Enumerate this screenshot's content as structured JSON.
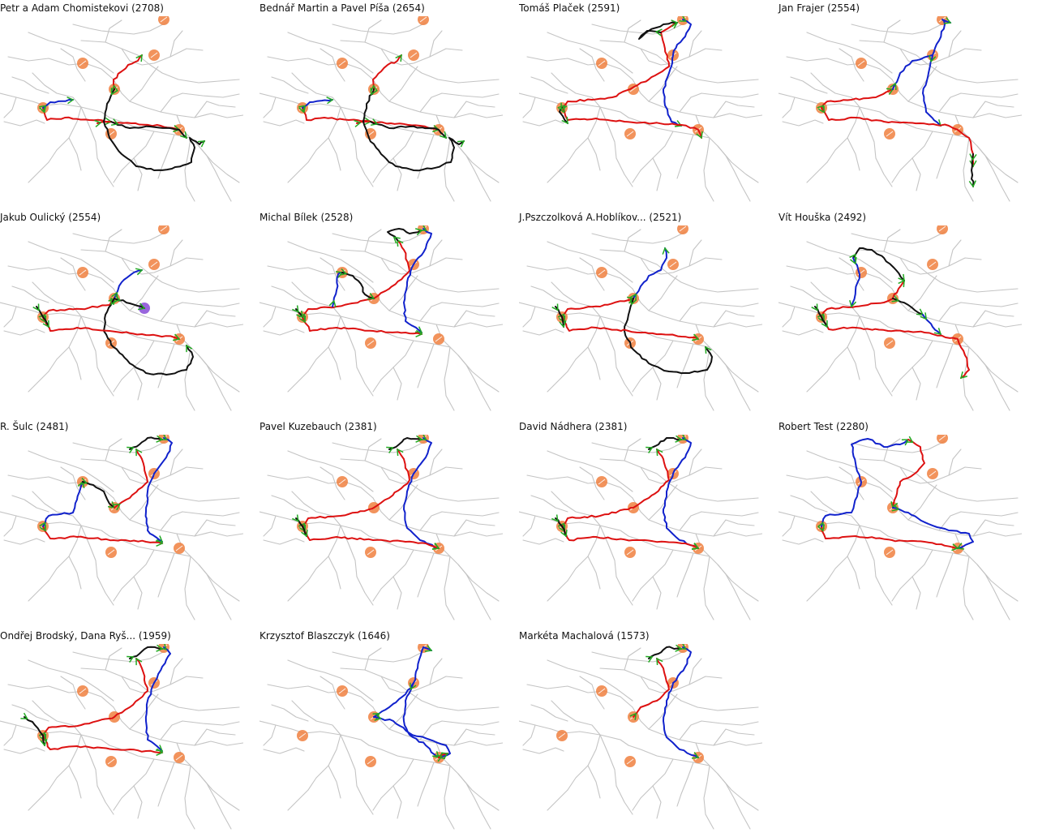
{
  "colors": {
    "river": "#c4c4c4",
    "checkpoint": "#f08040",
    "checkpoint_alt": "#9966dd",
    "red_leg": "#dd1111",
    "blue_leg": "#1122cc",
    "black_leg": "#111111",
    "arrow": "#22aa22"
  },
  "panels": [
    {
      "title": "Petr a Adam Chomistekovi (2708)",
      "route": "A"
    },
    {
      "title": "Bednář Martin a Pavel Píša (2654)",
      "route": "A"
    },
    {
      "title": "Tomáš Plaček (2591)",
      "route": "B"
    },
    {
      "title": "Jan Frajer (2554)",
      "route": "C"
    },
    {
      "title": "Jakub Oulický (2554)",
      "route": "D"
    },
    {
      "title": "Michal Bílek (2528)",
      "route": "E"
    },
    {
      "title": "J.Pszczolková A.Hoblíkov... (2521)",
      "route": "F"
    },
    {
      "title": "Vít Houška (2492)",
      "route": "G"
    },
    {
      "title": "R. Šulc (2481)",
      "route": "H"
    },
    {
      "title": "Pavel Kuzebauch (2381)",
      "route": "I"
    },
    {
      "title": "David Nádhera (2381)",
      "route": "I"
    },
    {
      "title": "Robert Test (2280)",
      "route": "J"
    },
    {
      "title": "Ondřej Brodský, Dana Ryš... (1959)",
      "route": "K"
    },
    {
      "title": "Krzysztof Blaszczyk (1646)",
      "route": "L"
    },
    {
      "title": "Markéta Machalová (1573)",
      "route": "M"
    }
  ]
}
